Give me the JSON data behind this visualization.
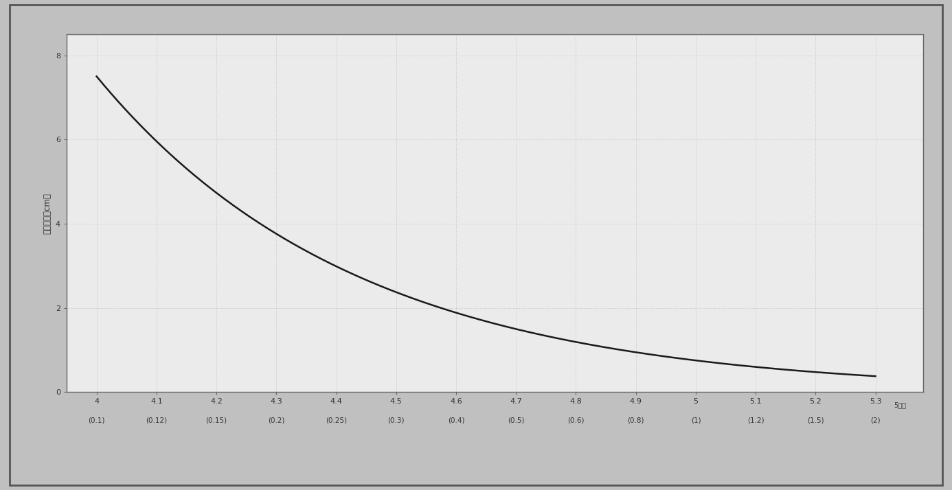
{
  "ylabel": "眼镜大小（cm）",
  "xlabel_top": [
    "4",
    "4.1",
    "4.2",
    "4.3",
    "4.4",
    "4.5",
    "4.6",
    "4.7",
    "4.8",
    "4.9",
    "5",
    "5.1",
    "5.2",
    "5.3"
  ],
  "xlabel_bottom": [
    "(0.1)",
    "(0.12)",
    "(0.15)",
    "(0.2)",
    "(0.25)",
    "(0.3)",
    "(0.4)",
    "(0.5)",
    "(0.6)",
    "(0.8)",
    "(1)",
    "(1.2)",
    "(1.5)",
    "(2)"
  ],
  "x_top_vals": [
    4.0,
    4.1,
    4.2,
    4.3,
    4.4,
    4.5,
    4.6,
    4.7,
    4.8,
    4.9,
    5.0,
    5.1,
    5.2,
    5.3
  ],
  "x_top_last_label": "5点制",
  "xlim": [
    3.95,
    5.38
  ],
  "ylim": [
    0,
    8.5
  ],
  "yticks": [
    0,
    2,
    4,
    6,
    8
  ],
  "outer_bg_color": "#c0c0c0",
  "plot_bg_color": "#ebebeb",
  "grid_color": "#b0b0b0",
  "line_color": "#1a1a1a",
  "border_color": "#666666",
  "spine_linewidth": 1.0,
  "line_width": 1.8,
  "grid_alpha": 0.9,
  "grid_linestyle": ":",
  "grid_linewidth": 0.5
}
